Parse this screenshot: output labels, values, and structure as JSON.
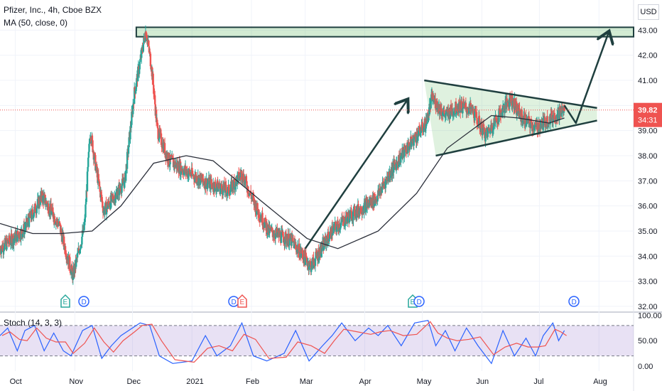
{
  "header": {
    "title": "Pfizer, Inc., 4h, Cboe BZX",
    "ma_label": "MA (50, close, 0)",
    "currency": "USD"
  },
  "price_label": {
    "value": "39.82",
    "countdown": "34:31",
    "color": "#ef5350"
  },
  "stoch_label": "Stoch (14, 3, 3)",
  "colors": {
    "up": "#26a69a",
    "down": "#ef5350",
    "ma": "#2a2e39",
    "drawing": "#1f3f3f",
    "stoch_k": "#2962ff",
    "stoch_d": "#ef5350",
    "stoch_band": "#7e57c2"
  },
  "events": [
    {
      "letter": "E",
      "month": "Nov",
      "color": "#26a69a"
    },
    {
      "letter": "D",
      "month": "Nov",
      "color": "#2962ff"
    },
    {
      "letter": "D",
      "month": "Feb",
      "color": "#2962ff"
    },
    {
      "letter": "E",
      "month": "Feb",
      "color": "#ef5350"
    },
    {
      "letter": "E",
      "month": "May",
      "color": "#26a69a"
    },
    {
      "letter": "D",
      "month": "May",
      "color": "#2962ff"
    },
    {
      "letter": "D",
      "month": "Aug",
      "color": "#2962ff"
    }
  ],
  "chart_data": [
    {
      "type": "candlestick",
      "title": "Pfizer, Inc., 4h, Cboe BZX",
      "y_ticks": [
        "32.00",
        "33.00",
        "34.00",
        "35.00",
        "36.00",
        "37.00",
        "38.00",
        "39.00",
        "40.00",
        "41.00",
        "42.00",
        "43.00"
      ],
      "x_ticks": [
        "Oct",
        "Nov",
        "Dec",
        "2021",
        "Feb",
        "Mar",
        "Apr",
        "May",
        "Jun",
        "Jul",
        "Aug"
      ],
      "ylim": [
        31.8,
        44.2
      ],
      "last_price": 39.82,
      "price_anchors": [
        {
          "date": "2020-09-23",
          "price": 34.3
        },
        {
          "date": "2020-10-05",
          "price": 35.0
        },
        {
          "date": "2020-10-15",
          "price": 36.4
        },
        {
          "date": "2020-10-24",
          "price": 35.2
        },
        {
          "date": "2020-10-28",
          "price": 34.0
        },
        {
          "date": "2020-10-31",
          "price": 33.2
        },
        {
          "date": "2020-11-06",
          "price": 35.2
        },
        {
          "date": "2020-11-09",
          "price": 39.0
        },
        {
          "date": "2020-11-12",
          "price": 37.5
        },
        {
          "date": "2020-11-16",
          "price": 35.8
        },
        {
          "date": "2020-11-22",
          "price": 36.4
        },
        {
          "date": "2020-11-27",
          "price": 37.0
        },
        {
          "date": "2020-12-02",
          "price": 40.5
        },
        {
          "date": "2020-12-08",
          "price": 43.0
        },
        {
          "date": "2020-12-11",
          "price": 41.5
        },
        {
          "date": "2020-12-14",
          "price": 39.0
        },
        {
          "date": "2020-12-20",
          "price": 37.8
        },
        {
          "date": "2021-01-06",
          "price": 37.0
        },
        {
          "date": "2021-01-20",
          "price": 36.6
        },
        {
          "date": "2021-01-27",
          "price": 37.3
        },
        {
          "date": "2021-02-03",
          "price": 36.0
        },
        {
          "date": "2021-02-10",
          "price": 35.0
        },
        {
          "date": "2021-02-22",
          "price": 34.6
        },
        {
          "date": "2021-03-04",
          "price": 33.6
        },
        {
          "date": "2021-03-15",
          "price": 35.0
        },
        {
          "date": "2021-03-24",
          "price": 35.6
        },
        {
          "date": "2021-04-07",
          "price": 36.3
        },
        {
          "date": "2021-04-14",
          "price": 37.3
        },
        {
          "date": "2021-04-20",
          "price": 38.0
        },
        {
          "date": "2021-04-27",
          "price": 38.7
        },
        {
          "date": "2021-05-03",
          "price": 39.3
        },
        {
          "date": "2021-05-06",
          "price": 40.3
        },
        {
          "date": "2021-05-13",
          "price": 39.6
        },
        {
          "date": "2021-05-20",
          "price": 40.0
        },
        {
          "date": "2021-05-27",
          "price": 39.8
        },
        {
          "date": "2021-06-03",
          "price": 38.8
        },
        {
          "date": "2021-06-09",
          "price": 39.5
        },
        {
          "date": "2021-06-16",
          "price": 40.3
        },
        {
          "date": "2021-06-22",
          "price": 39.5
        },
        {
          "date": "2021-06-29",
          "price": 39.1
        },
        {
          "date": "2021-07-03",
          "price": 39.3
        },
        {
          "date": "2021-07-09",
          "price": 39.6
        },
        {
          "date": "2021-07-14",
          "price": 39.82
        }
      ],
      "ma50": [
        {
          "date": "2020-09-23",
          "price": 35.3
        },
        {
          "date": "2020-10-10",
          "price": 34.9
        },
        {
          "date": "2020-10-25",
          "price": 34.9
        },
        {
          "date": "2020-11-10",
          "price": 35.0
        },
        {
          "date": "2020-11-25",
          "price": 36.0
        },
        {
          "date": "2020-12-12",
          "price": 37.7
        },
        {
          "date": "2020-12-29",
          "price": 38.0
        },
        {
          "date": "2021-01-12",
          "price": 37.8
        },
        {
          "date": "2021-02-06",
          "price": 36.2
        },
        {
          "date": "2021-03-02",
          "price": 34.7
        },
        {
          "date": "2021-03-18",
          "price": 34.3
        },
        {
          "date": "2021-04-08",
          "price": 35.0
        },
        {
          "date": "2021-04-28",
          "price": 36.5
        },
        {
          "date": "2021-05-14",
          "price": 38.3
        },
        {
          "date": "2021-06-06",
          "price": 39.6
        },
        {
          "date": "2021-06-20",
          "price": 39.5
        },
        {
          "date": "2021-07-06",
          "price": 39.3
        },
        {
          "date": "2021-07-14",
          "price": 39.5
        }
      ],
      "drawings": {
        "resistance_zone": [
          42.85,
          43.0
        ],
        "upper_trendline": [
          {
            "date": "2021-05-02",
            "price": 41.0
          },
          {
            "date": "2021-07-31",
            "price": 39.9
          }
        ],
        "lower_trendline": [
          {
            "date": "2021-05-08",
            "price": 38.0
          },
          {
            "date": "2021-07-31",
            "price": 39.4
          }
        ],
        "rally_arrow": [
          {
            "date": "2021-03-01",
            "price": 34.3
          },
          {
            "date": "2021-04-23",
            "price": 40.2
          }
        ],
        "projection_path": [
          {
            "date": "2021-07-14",
            "price": 40.0
          },
          {
            "date": "2021-07-20",
            "price": 39.3
          },
          {
            "date": "2021-08-06",
            "price": 42.9
          }
        ]
      }
    },
    {
      "type": "line",
      "title": "Stoch (14, 3, 3)",
      "y_ticks": [
        "0.00",
        "50.00",
        "100.00"
      ],
      "ylim": [
        -10,
        105
      ],
      "bands": [
        20,
        80
      ],
      "series": [
        {
          "values_anchors": [
            {
              "date": "2020-09-23",
              "price": 60
            },
            {
              "date": "2020-09-27",
              "price": 75
            },
            {
              "date": "2020-10-02",
              "price": 30
            },
            {
              "date": "2020-10-06",
              "price": 70
            },
            {
              "date": "2020-10-11",
              "price": 80
            },
            {
              "date": "2020-10-16",
              "price": 30
            },
            {
              "date": "2020-10-21",
              "price": 65
            },
            {
              "date": "2020-10-26",
              "price": 30
            },
            {
              "date": "2020-10-30",
              "price": 20
            },
            {
              "date": "2020-11-05",
              "price": 70
            },
            {
              "date": "2020-11-10",
              "price": 80
            },
            {
              "date": "2020-11-15",
              "price": 15
            },
            {
              "date": "2020-11-20",
              "price": 40
            },
            {
              "date": "2020-11-25",
              "price": 60
            },
            {
              "date": "2020-12-01",
              "price": 75
            },
            {
              "date": "2020-12-05",
              "price": 85
            },
            {
              "date": "2020-12-10",
              "price": 80
            },
            {
              "date": "2020-12-15",
              "price": 20
            },
            {
              "date": "2020-12-22",
              "price": 5
            },
            {
              "date": "2021-01-01",
              "price": 10
            },
            {
              "date": "2021-01-08",
              "price": 60
            },
            {
              "date": "2021-01-14",
              "price": 20
            },
            {
              "date": "2021-01-21",
              "price": 40
            },
            {
              "date": "2021-01-27",
              "price": 85
            },
            {
              "date": "2021-02-02",
              "price": 20
            },
            {
              "date": "2021-02-09",
              "price": 10
            },
            {
              "date": "2021-02-18",
              "price": 25
            },
            {
              "date": "2021-02-24",
              "price": 70
            },
            {
              "date": "2021-03-03",
              "price": 10
            },
            {
              "date": "2021-03-10",
              "price": 40
            },
            {
              "date": "2021-03-15",
              "price": 60
            },
            {
              "date": "2021-03-20",
              "price": 85
            },
            {
              "date": "2021-03-27",
              "price": 50
            },
            {
              "date": "2021-04-03",
              "price": 75
            },
            {
              "date": "2021-04-08",
              "price": 60
            },
            {
              "date": "2021-04-13",
              "price": 80
            },
            {
              "date": "2021-04-20",
              "price": 40
            },
            {
              "date": "2021-04-27",
              "price": 85
            },
            {
              "date": "2021-05-04",
              "price": 90
            },
            {
              "date": "2021-05-08",
              "price": 40
            },
            {
              "date": "2021-05-13",
              "price": 70
            },
            {
              "date": "2021-05-18",
              "price": 30
            },
            {
              "date": "2021-05-24",
              "price": 75
            },
            {
              "date": "2021-05-30",
              "price": 40
            },
            {
              "date": "2021-06-06",
              "price": 5
            },
            {
              "date": "2021-06-12",
              "price": 70
            },
            {
              "date": "2021-06-18",
              "price": 20
            },
            {
              "date": "2021-06-24",
              "price": 55
            },
            {
              "date": "2021-06-29",
              "price": 20
            },
            {
              "date": "2021-07-03",
              "price": 60
            },
            {
              "date": "2021-07-08",
              "price": 85
            },
            {
              "date": "2021-07-11",
              "price": 50
            },
            {
              "date": "2021-07-14",
              "price": 70
            }
          ]
        }
      ]
    }
  ]
}
